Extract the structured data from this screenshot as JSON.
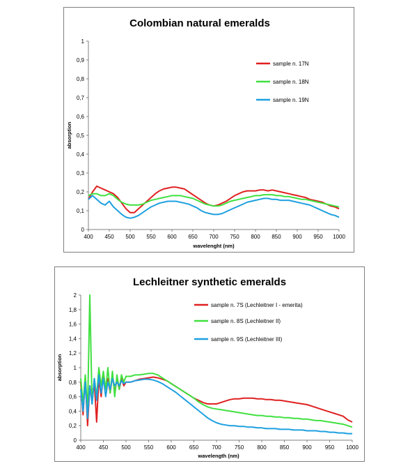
{
  "chart_data": [
    {
      "type": "line",
      "title": "Colombian natural emeralds",
      "xlabel": "wavelenght (nm)",
      "ylabel": "absorption",
      "xlim": [
        400,
        1000
      ],
      "ylim": [
        0,
        1
      ],
      "xticks": [
        "400",
        "450",
        "500",
        "550",
        "600",
        "650",
        "700",
        "750",
        "800",
        "850",
        "900",
        "950",
        "1000"
      ],
      "yticks": [
        "0",
        "0,1",
        "0,2",
        "0,3",
        "0,4",
        "0,5",
        "0,6",
        "0,7",
        "0,8",
        "0,9",
        "1"
      ],
      "legend_position": "top-right",
      "grid": false,
      "series": [
        {
          "name": "sample n. 17N",
          "color": "#e02020",
          "x": [
            400,
            410,
            420,
            430,
            440,
            450,
            460,
            470,
            480,
            490,
            500,
            510,
            520,
            530,
            540,
            550,
            560,
            570,
            580,
            590,
            600,
            610,
            620,
            630,
            640,
            650,
            660,
            670,
            680,
            690,
            700,
            710,
            720,
            730,
            740,
            750,
            760,
            770,
            780,
            790,
            800,
            810,
            820,
            830,
            840,
            850,
            860,
            870,
            880,
            890,
            900,
            910,
            920,
            930,
            940,
            950,
            960,
            970,
            980,
            990,
            1000
          ],
          "y": [
            0.16,
            0.2,
            0.23,
            0.22,
            0.21,
            0.2,
            0.19,
            0.17,
            0.14,
            0.11,
            0.09,
            0.09,
            0.11,
            0.13,
            0.15,
            0.17,
            0.19,
            0.205,
            0.215,
            0.22,
            0.225,
            0.225,
            0.22,
            0.215,
            0.2,
            0.185,
            0.17,
            0.155,
            0.14,
            0.13,
            0.125,
            0.13,
            0.14,
            0.15,
            0.165,
            0.18,
            0.19,
            0.2,
            0.205,
            0.205,
            0.205,
            0.21,
            0.21,
            0.205,
            0.21,
            0.205,
            0.2,
            0.195,
            0.19,
            0.185,
            0.18,
            0.175,
            0.17,
            0.16,
            0.155,
            0.15,
            0.145,
            0.135,
            0.125,
            0.12,
            0.11
          ]
        },
        {
          "name": "sample n. 18N",
          "color": "#40e040",
          "x": [
            400,
            410,
            420,
            430,
            440,
            450,
            460,
            470,
            480,
            490,
            500,
            510,
            520,
            530,
            540,
            550,
            560,
            570,
            580,
            590,
            600,
            610,
            620,
            630,
            640,
            650,
            660,
            670,
            680,
            690,
            700,
            710,
            720,
            730,
            740,
            750,
            760,
            770,
            780,
            790,
            800,
            810,
            820,
            830,
            840,
            850,
            860,
            870,
            880,
            890,
            900,
            910,
            920,
            930,
            940,
            950,
            960,
            970,
            980,
            990,
            1000
          ],
          "y": [
            0.18,
            0.19,
            0.19,
            0.18,
            0.18,
            0.19,
            0.18,
            0.16,
            0.145,
            0.135,
            0.13,
            0.13,
            0.13,
            0.135,
            0.145,
            0.155,
            0.16,
            0.165,
            0.17,
            0.175,
            0.18,
            0.18,
            0.18,
            0.175,
            0.17,
            0.165,
            0.155,
            0.145,
            0.135,
            0.13,
            0.125,
            0.125,
            0.13,
            0.14,
            0.15,
            0.155,
            0.16,
            0.165,
            0.17,
            0.175,
            0.18,
            0.18,
            0.185,
            0.185,
            0.185,
            0.18,
            0.18,
            0.175,
            0.175,
            0.17,
            0.165,
            0.16,
            0.16,
            0.155,
            0.15,
            0.145,
            0.14,
            0.135,
            0.13,
            0.125,
            0.12
          ]
        },
        {
          "name": "sample n. 19N",
          "color": "#1ea0e0",
          "x": [
            400,
            410,
            420,
            430,
            440,
            450,
            460,
            470,
            480,
            490,
            500,
            510,
            520,
            530,
            540,
            550,
            560,
            570,
            580,
            590,
            600,
            610,
            620,
            630,
            640,
            650,
            660,
            670,
            680,
            690,
            700,
            710,
            720,
            730,
            740,
            750,
            760,
            770,
            780,
            790,
            800,
            810,
            820,
            830,
            840,
            850,
            860,
            870,
            880,
            890,
            900,
            910,
            920,
            930,
            940,
            950,
            960,
            970,
            980,
            990,
            1000
          ],
          "y": [
            0.16,
            0.18,
            0.16,
            0.14,
            0.13,
            0.15,
            0.12,
            0.1,
            0.08,
            0.065,
            0.06,
            0.065,
            0.075,
            0.09,
            0.105,
            0.12,
            0.13,
            0.14,
            0.145,
            0.15,
            0.15,
            0.15,
            0.145,
            0.14,
            0.135,
            0.125,
            0.115,
            0.1,
            0.09,
            0.085,
            0.08,
            0.08,
            0.085,
            0.095,
            0.105,
            0.115,
            0.125,
            0.135,
            0.145,
            0.15,
            0.155,
            0.16,
            0.165,
            0.165,
            0.16,
            0.16,
            0.155,
            0.155,
            0.155,
            0.15,
            0.145,
            0.14,
            0.135,
            0.13,
            0.12,
            0.11,
            0.1,
            0.09,
            0.08,
            0.075,
            0.065
          ]
        }
      ]
    },
    {
      "type": "line",
      "title": "Lechleitner synthetic emeralds",
      "xlabel": "wavelength (nm)",
      "ylabel": "absorption",
      "xlim": [
        400,
        1000
      ],
      "ylim": [
        0,
        2
      ],
      "xticks": [
        "400",
        "450",
        "500",
        "550",
        "600",
        "650",
        "700",
        "750",
        "800",
        "850",
        "900",
        "950",
        "1000"
      ],
      "yticks": [
        "0",
        "0,2",
        "0,4",
        "0,6",
        "0,8",
        "1",
        "1,2",
        "1,4",
        "1,6",
        "1,8",
        "2"
      ],
      "legend_position": "top-right",
      "grid": false,
      "series": [
        {
          "name": "sample n. 7S (Lechleitner I - emerita)",
          "color": "#e02020",
          "x": [
            400,
            405,
            410,
            415,
            420,
            425,
            430,
            435,
            440,
            445,
            450,
            455,
            460,
            465,
            470,
            475,
            480,
            485,
            490,
            495,
            500,
            510,
            520,
            530,
            540,
            550,
            560,
            570,
            580,
            590,
            600,
            610,
            620,
            630,
            640,
            650,
            660,
            670,
            680,
            690,
            700,
            710,
            720,
            730,
            740,
            750,
            760,
            770,
            780,
            790,
            800,
            810,
            820,
            830,
            840,
            850,
            860,
            870,
            880,
            890,
            900,
            910,
            920,
            930,
            940,
            950,
            960,
            970,
            980,
            990,
            1000
          ],
          "y": [
            0.8,
            0.35,
            0.85,
            0.2,
            0.75,
            0.55,
            0.8,
            0.25,
            0.85,
            0.6,
            0.9,
            0.7,
            0.85,
            0.65,
            0.9,
            0.65,
            0.85,
            0.7,
            0.85,
            0.75,
            0.8,
            0.8,
            0.82,
            0.84,
            0.85,
            0.86,
            0.87,
            0.86,
            0.84,
            0.82,
            0.78,
            0.74,
            0.7,
            0.66,
            0.62,
            0.58,
            0.55,
            0.52,
            0.5,
            0.5,
            0.5,
            0.52,
            0.54,
            0.56,
            0.57,
            0.57,
            0.58,
            0.58,
            0.58,
            0.57,
            0.57,
            0.56,
            0.56,
            0.55,
            0.55,
            0.54,
            0.53,
            0.52,
            0.51,
            0.5,
            0.49,
            0.47,
            0.45,
            0.43,
            0.41,
            0.39,
            0.37,
            0.35,
            0.33,
            0.28,
            0.25
          ]
        },
        {
          "name": "sample n. 8S (Lechleitner II)",
          "color": "#40e040",
          "x": [
            400,
            405,
            410,
            415,
            420,
            425,
            430,
            435,
            440,
            445,
            450,
            455,
            460,
            465,
            470,
            475,
            480,
            485,
            490,
            495,
            500,
            510,
            520,
            530,
            540,
            550,
            560,
            570,
            580,
            590,
            600,
            610,
            620,
            630,
            640,
            650,
            660,
            670,
            680,
            690,
            700,
            710,
            720,
            730,
            740,
            750,
            760,
            770,
            780,
            790,
            800,
            810,
            820,
            830,
            840,
            850,
            860,
            870,
            880,
            890,
            900,
            910,
            920,
            930,
            940,
            950,
            960,
            970,
            980,
            990,
            1000
          ],
          "y": [
            0.85,
            0.5,
            0.9,
            0.4,
            2.0,
            0.5,
            0.85,
            0.6,
            1.0,
            0.75,
            0.95,
            0.7,
            1.0,
            0.65,
            0.95,
            0.6,
            0.9,
            0.7,
            0.9,
            0.8,
            0.88,
            0.88,
            0.9,
            0.9,
            0.91,
            0.92,
            0.92,
            0.9,
            0.86,
            0.82,
            0.78,
            0.74,
            0.7,
            0.66,
            0.62,
            0.58,
            0.53,
            0.49,
            0.46,
            0.44,
            0.43,
            0.42,
            0.41,
            0.4,
            0.39,
            0.38,
            0.37,
            0.36,
            0.35,
            0.34,
            0.34,
            0.33,
            0.33,
            0.32,
            0.32,
            0.31,
            0.31,
            0.3,
            0.3,
            0.29,
            0.29,
            0.28,
            0.27,
            0.27,
            0.26,
            0.25,
            0.24,
            0.23,
            0.22,
            0.2,
            0.18
          ]
        },
        {
          "name": "sample n. 9S (Lechleitner III)",
          "color": "#1ea0e0",
          "x": [
            400,
            405,
            410,
            415,
            420,
            425,
            430,
            435,
            440,
            445,
            450,
            455,
            460,
            465,
            470,
            475,
            480,
            485,
            490,
            495,
            500,
            510,
            520,
            530,
            540,
            550,
            560,
            570,
            580,
            590,
            600,
            610,
            620,
            630,
            640,
            650,
            660,
            670,
            680,
            690,
            700,
            710,
            720,
            730,
            740,
            750,
            760,
            770,
            780,
            790,
            800,
            810,
            820,
            830,
            840,
            850,
            860,
            870,
            880,
            890,
            900,
            910,
            920,
            930,
            940,
            950,
            960,
            970,
            980,
            990,
            1000
          ],
          "y": [
            0.7,
            0.4,
            0.8,
            0.3,
            0.75,
            0.5,
            0.85,
            0.55,
            0.9,
            0.65,
            0.85,
            0.6,
            0.8,
            0.7,
            0.85,
            0.75,
            0.8,
            0.75,
            0.82,
            0.78,
            0.8,
            0.8,
            0.82,
            0.83,
            0.84,
            0.84,
            0.83,
            0.81,
            0.78,
            0.74,
            0.7,
            0.66,
            0.61,
            0.56,
            0.51,
            0.46,
            0.41,
            0.36,
            0.31,
            0.27,
            0.24,
            0.22,
            0.21,
            0.2,
            0.2,
            0.19,
            0.19,
            0.18,
            0.18,
            0.17,
            0.17,
            0.16,
            0.16,
            0.16,
            0.15,
            0.15,
            0.15,
            0.14,
            0.14,
            0.14,
            0.13,
            0.13,
            0.13,
            0.12,
            0.12,
            0.11,
            0.11,
            0.1,
            0.1,
            0.09,
            0.09
          ]
        }
      ]
    }
  ]
}
